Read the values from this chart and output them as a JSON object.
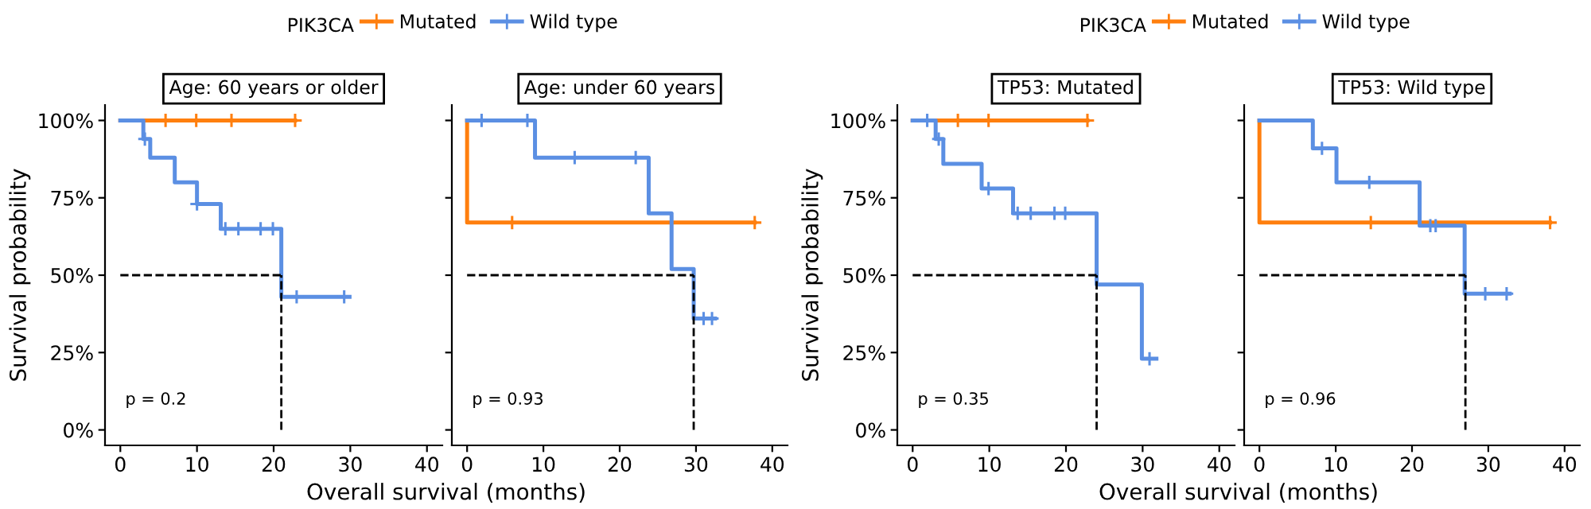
{
  "chart_data": [
    {
      "type": "step",
      "title": "Age: 60 years or older",
      "xlabel": "Overall survival (months)",
      "ylabel": "Survival probability",
      "legend_title": "PIK3CA",
      "legend": "top",
      "annotations": [
        "p = 0.2"
      ],
      "xlim": [
        -2,
        42
      ],
      "ylim": [
        -5,
        105
      ],
      "xticks": [
        0,
        10,
        20,
        30,
        40
      ],
      "yticks": [
        {
          "value": 0,
          "label": "0%"
        },
        {
          "value": 25,
          "label": "25%"
        },
        {
          "value": 50,
          "label": "50%"
        },
        {
          "value": 75,
          "label": "75%"
        },
        {
          "value": 100,
          "label": "100%"
        }
      ],
      "grid": false,
      "ref_lines": [
        {
          "axis": "y",
          "value": 50,
          "color": "#000000",
          "line_style": "dashed"
        },
        {
          "axis": "x",
          "value": 21,
          "color": "#000000",
          "line_style": "dashed"
        }
      ],
      "series": [
        {
          "name": "Mutated",
          "color": "#ff7f0e",
          "x": [
            0,
            22.8
          ],
          "values": [
            100,
            100
          ]
        },
        {
          "name": "Wild type",
          "color": "#5b8fe3",
          "x": [
            0,
            3.0,
            3.9,
            7.1,
            10,
            13.1,
            21,
            29.9
          ],
          "values": [
            100,
            94,
            88,
            80,
            73,
            65,
            43,
            43
          ]
        },
        {
          "type": "scatter",
          "marker": "cross",
          "color": "#ff7f0e",
          "x": [
            5.9,
            9.9,
            14.5,
            22.8
          ],
          "values": [
            100,
            100,
            100,
            100
          ]
        },
        {
          "type": "scatter",
          "marker": "cross",
          "color": "#5b8fe3",
          "x": [
            3.2,
            10,
            13.7,
            15.4,
            18.3,
            19.9,
            23,
            29.2
          ],
          "values": [
            94,
            73,
            65,
            65,
            65,
            65,
            43,
            43
          ]
        }
      ]
    },
    {
      "type": "step",
      "title": "Age: under 60 years",
      "legend": false,
      "annotations": [
        "p = 0.93"
      ],
      "xlim": [
        -2,
        42
      ],
      "ylim": [
        -5,
        105
      ],
      "xticks": [
        0,
        10,
        20,
        30,
        40
      ],
      "yticks": [
        {
          "value": 0,
          "label": null
        },
        {
          "value": 25,
          "label": null
        },
        {
          "value": 50,
          "label": null
        },
        {
          "value": 75,
          "label": null
        },
        {
          "value": 100,
          "label": null
        }
      ],
      "tick_labels": "x",
      "grid": false,
      "ref_lines": [
        {
          "axis": "y",
          "value": 50,
          "color": "#000000",
          "line_style": "dashed"
        },
        {
          "axis": "x",
          "value": 29.7,
          "color": "#000000",
          "line_style": "dashed"
        }
      ],
      "series": [
        {
          "color": "#ff7f0e",
          "x": [
            0,
            0,
            37.7
          ],
          "values": [
            100,
            67,
            67
          ]
        },
        {
          "color": "#5b8fe3",
          "x": [
            0,
            8.9,
            23.8,
            26.8,
            29.7,
            32.5
          ],
          "values": [
            100,
            88,
            70,
            52,
            36,
            36
          ]
        },
        {
          "type": "scatter",
          "marker": "cross",
          "color": "#ff7f0e",
          "x": [
            5.9,
            37.7
          ],
          "values": [
            67,
            67
          ]
        },
        {
          "type": "scatter",
          "marker": "cross",
          "color": "#5b8fe3",
          "x": [
            1.9,
            7.9,
            14.1,
            22.1,
            31.0,
            32.1
          ],
          "values": [
            100,
            100,
            88,
            88,
            36,
            36
          ]
        }
      ]
    },
    {
      "type": "step",
      "title": "TP53: Mutated",
      "xlabel": "Overall survival (months)",
      "ylabel": "Survival probability",
      "legend_title": "PIK3CA",
      "legend": "top",
      "annotations": [
        "p = 0.35"
      ],
      "xlim": [
        -2,
        42
      ],
      "ylim": [
        -5,
        105
      ],
      "xticks": [
        0,
        10,
        20,
        30,
        40
      ],
      "yticks": [
        {
          "value": 0,
          "label": "0%"
        },
        {
          "value": 25,
          "label": "25%"
        },
        {
          "value": 50,
          "label": "50%"
        },
        {
          "value": 75,
          "label": "75%"
        },
        {
          "value": 100,
          "label": "100%"
        }
      ],
      "grid": false,
      "ref_lines": [
        {
          "axis": "y",
          "value": 50,
          "color": "#000000",
          "line_style": "dashed"
        },
        {
          "axis": "x",
          "value": 24,
          "color": "#000000",
          "line_style": "dashed"
        }
      ],
      "series": [
        {
          "name": "Mutated",
          "color": "#ff7f0e",
          "x": [
            0,
            22.8
          ],
          "values": [
            100,
            100
          ]
        },
        {
          "name": "Wild type",
          "color": "#5b8fe3",
          "x": [
            0,
            3.0,
            4.0,
            9.0,
            13.1,
            24.0,
            29.9,
            31.8
          ],
          "values": [
            100,
            94,
            86,
            78,
            70,
            47,
            23,
            23
          ]
        },
        {
          "type": "scatter",
          "marker": "cross",
          "color": "#ff7f0e",
          "x": [
            5.9,
            9.9,
            22.8
          ],
          "values": [
            100,
            100,
            100
          ]
        },
        {
          "type": "scatter",
          "marker": "cross",
          "color": "#5b8fe3",
          "x": [
            1.9,
            3.4,
            9.9,
            13.7,
            15.4,
            18.5,
            19.9,
            30.9
          ],
          "values": [
            100,
            94,
            78,
            70,
            70,
            70,
            70,
            23
          ]
        }
      ]
    },
    {
      "type": "step",
      "title": "TP53: Wild type",
      "legend": false,
      "annotations": [
        "p = 0.96"
      ],
      "xlim": [
        -2,
        42
      ],
      "ylim": [
        -5,
        105
      ],
      "xticks": [
        0,
        10,
        20,
        30,
        40
      ],
      "yticks": [
        {
          "value": 0,
          "label": null
        },
        {
          "value": 25,
          "label": null
        },
        {
          "value": 50,
          "label": null
        },
        {
          "value": 75,
          "label": null
        },
        {
          "value": 100,
          "label": null
        }
      ],
      "tick_labels": "x",
      "grid": false,
      "ref_lines": [
        {
          "axis": "y",
          "value": 50,
          "color": "#000000",
          "line_style": "dashed"
        },
        {
          "axis": "x",
          "value": 27,
          "color": "#000000",
          "line_style": "dashed"
        }
      ],
      "series": [
        {
          "color": "#ff7f0e",
          "x": [
            0,
            0,
            38.1
          ],
          "values": [
            100,
            67,
            67
          ]
        },
        {
          "color": "#5b8fe3",
          "x": [
            0,
            7.0,
            10.1,
            21.0,
            26.9,
            32.8
          ],
          "values": [
            100,
            91,
            80,
            66,
            44,
            44
          ]
        },
        {
          "type": "scatter",
          "marker": "cross",
          "color": "#ff7f0e",
          "x": [
            14.6,
            38.1
          ],
          "values": [
            67,
            67
          ]
        },
        {
          "type": "scatter",
          "marker": "cross",
          "color": "#5b8fe3",
          "x": [
            8.2,
            14.4,
            22.4,
            23.1,
            29.6,
            32.4
          ],
          "values": [
            91,
            80,
            66,
            66,
            44,
            44
          ]
        }
      ]
    }
  ]
}
